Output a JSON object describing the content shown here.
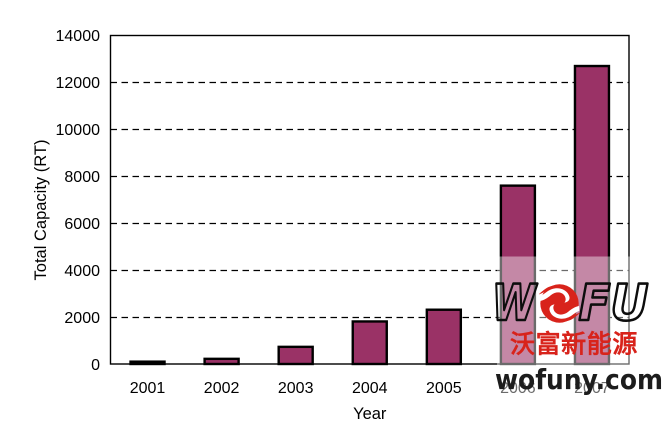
{
  "chart_data": {
    "type": "bar",
    "title": "",
    "categories": [
      "2001",
      "2002",
      "2003",
      "2004",
      "2005",
      "2006",
      "2007"
    ],
    "values": [
      100,
      220,
      730,
      1810,
      2310,
      7590,
      12680
    ],
    "xlabel": "Year",
    "ylabel": "Total Capacity (RT)",
    "ylim": [
      0,
      14000
    ],
    "yticks": [
      0,
      2000,
      4000,
      6000,
      8000,
      10000,
      12000,
      14000
    ],
    "grid": "horizontal-dashed",
    "legend": "none",
    "bar_fill": "#9a3266",
    "bar_border": "#000000",
    "axis_color": "#000000",
    "text_color": "#000000"
  },
  "watermark": {
    "brand_letter_w": "W",
    "brand_letters_fu": "FU",
    "brand_name": "WOFU",
    "logo_emblem": "red-double-swoosh-circle-icon",
    "cjk_text": "沃富新能源",
    "domain": "wofuny.com",
    "red": "#d8231b",
    "domain_color": "#1c1c1c",
    "backdrop": "translucent-white"
  }
}
